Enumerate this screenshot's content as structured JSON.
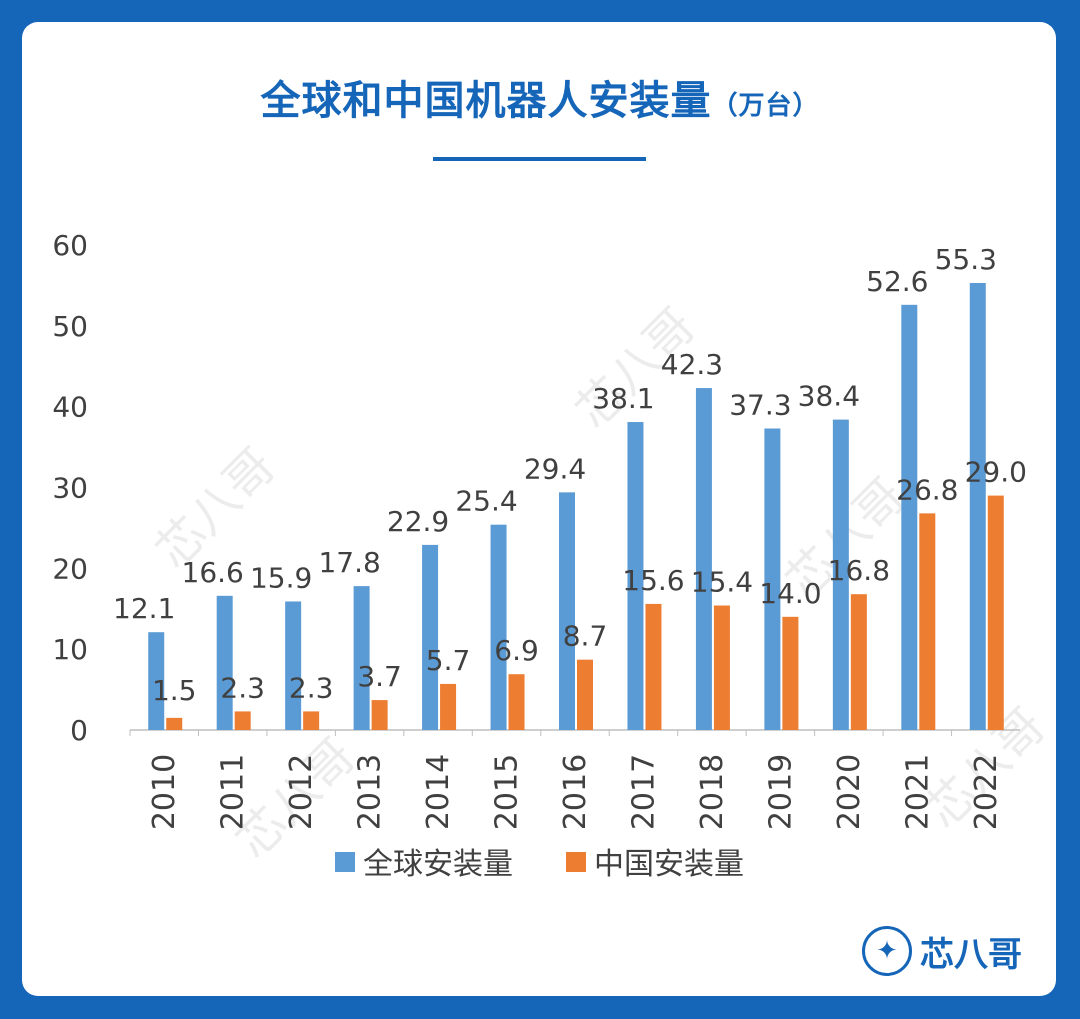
{
  "title": "全球和中国机器人安装量",
  "title_unit": "（万台）",
  "logo_text": "芯八哥",
  "watermark_text": "芯八哥",
  "chart_data": {
    "type": "bar",
    "categories": [
      "2010",
      "2011",
      "2012",
      "2013",
      "2014",
      "2015",
      "2016",
      "2017",
      "2018",
      "2019",
      "2020",
      "2021",
      "2022"
    ],
    "series": [
      {
        "name": "全球安装量",
        "color": "#5b9bd5",
        "values": [
          12.1,
          16.6,
          15.9,
          17.8,
          22.9,
          25.4,
          29.4,
          38.1,
          42.3,
          37.3,
          38.4,
          52.6,
          55.3
        ]
      },
      {
        "name": "中国安装量",
        "color": "#ed7d31",
        "values": [
          1.5,
          2.3,
          2.3,
          3.7,
          5.7,
          6.9,
          8.7,
          15.6,
          15.4,
          14.0,
          16.8,
          26.8,
          29.0
        ]
      }
    ],
    "ylim": [
      0,
      60
    ],
    "yticks": [
      0,
      10,
      20,
      30,
      40,
      50,
      60
    ],
    "grid": false,
    "legend": "bottom"
  },
  "colors": {
    "background": "#1565b8",
    "accent": "#1565b8",
    "card": "#ffffff"
  }
}
